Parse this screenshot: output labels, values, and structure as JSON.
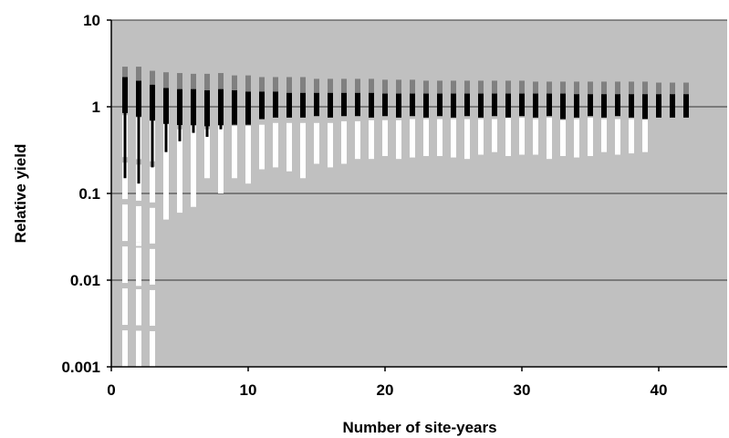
{
  "chart_data": {
    "type": "box-range",
    "title": "",
    "xlabel": "Number of site-years",
    "ylabel": "Relative yield",
    "xlim": [
      0,
      45
    ],
    "ylim": [
      0.001,
      10
    ],
    "yscale": "log",
    "x_ticks": [
      0,
      10,
      20,
      30,
      40
    ],
    "y_ticks": [
      0.001,
      0.01,
      0.1,
      1,
      10
    ],
    "x_tick_labels": [
      "0",
      "10",
      "20",
      "30",
      "40"
    ],
    "y_tick_labels": [
      "0.001",
      "0.01",
      "0.1",
      "1",
      "10"
    ],
    "grid": "horizontal",
    "colors": {
      "plot_background": "#c0c0c0",
      "white_range": "#ffffff",
      "black_range": "#000000",
      "gray_range": "#808080"
    },
    "x": [
      1,
      2,
      3,
      4,
      5,
      6,
      7,
      8,
      9,
      10,
      11,
      12,
      13,
      14,
      15,
      16,
      17,
      18,
      19,
      20,
      21,
      22,
      23,
      24,
      25,
      26,
      27,
      28,
      29,
      30,
      31,
      32,
      33,
      34,
      35,
      36,
      37,
      38,
      39,
      40,
      41,
      42
    ],
    "white_lower": [
      0.001,
      0.001,
      0.001,
      0.05,
      0.06,
      0.07,
      0.15,
      0.1,
      0.15,
      0.13,
      0.19,
      0.2,
      0.18,
      0.15,
      0.22,
      0.2,
      0.22,
      0.25,
      0.25,
      0.27,
      0.25,
      0.26,
      0.27,
      0.27,
      0.26,
      0.25,
      0.28,
      0.3,
      0.27,
      0.28,
      0.28,
      0.25,
      0.27,
      0.26,
      0.27,
      0.3,
      0.28,
      0.29,
      0.3,
      null,
      null,
      null
    ],
    "white_upper": [
      0.8,
      0.75,
      0.7,
      0.75,
      0.55,
      0.6,
      0.55,
      0.6,
      0.6,
      0.6,
      0.62,
      0.65,
      0.65,
      0.65,
      0.65,
      0.65,
      0.68,
      0.68,
      0.7,
      0.7,
      0.7,
      0.72,
      0.72,
      0.72,
      0.72,
      0.72,
      0.72,
      0.72,
      0.75,
      0.75,
      0.72,
      0.75,
      0.7,
      0.72,
      0.75,
      0.72,
      0.72,
      0.72,
      0.72,
      null,
      null,
      null
    ],
    "white_outliers": [
      [
        1,
        0.035
      ],
      [
        1,
        0.018
      ],
      [
        2,
        0.045
      ],
      [
        2,
        0.026
      ],
      [
        2,
        0.018
      ],
      [
        2,
        0.009
      ],
      [
        3,
        0.06
      ],
      [
        3,
        0.028
      ],
      [
        3,
        0.012
      ],
      [
        1,
        0.1
      ],
      [
        1,
        0.15
      ]
    ],
    "black_lower": [
      0.15,
      0.13,
      0.2,
      0.3,
      0.4,
      0.5,
      0.45,
      0.55,
      0.62,
      0.62,
      0.72,
      0.75,
      0.75,
      0.75,
      0.78,
      0.75,
      0.78,
      0.78,
      0.75,
      0.78,
      0.75,
      0.78,
      0.75,
      0.78,
      0.75,
      0.78,
      0.75,
      0.78,
      0.75,
      0.78,
      0.75,
      0.78,
      0.72,
      0.75,
      0.78,
      0.75,
      0.78,
      0.75,
      0.72,
      0.75,
      0.75,
      0.75
    ],
    "black_upper": [
      2.2,
      2.0,
      1.8,
      1.65,
      1.6,
      1.6,
      1.55,
      1.6,
      1.55,
      1.5,
      1.5,
      1.5,
      1.45,
      1.45,
      1.45,
      1.45,
      1.45,
      1.45,
      1.45,
      1.42,
      1.42,
      1.42,
      1.42,
      1.42,
      1.42,
      1.42,
      1.42,
      1.42,
      1.42,
      1.42,
      1.42,
      1.42,
      1.42,
      1.4,
      1.4,
      1.4,
      1.4,
      1.4,
      1.4,
      1.4,
      1.4,
      1.4
    ],
    "gray_lower": [
      2.2,
      2.0,
      1.8,
      1.65,
      1.6,
      1.6,
      1.55,
      1.6,
      1.55,
      1.5,
      1.5,
      1.5,
      1.45,
      1.45,
      1.45,
      1.45,
      1.45,
      1.45,
      1.45,
      1.42,
      1.42,
      1.42,
      1.42,
      1.42,
      1.42,
      1.42,
      1.42,
      1.42,
      1.42,
      1.42,
      1.42,
      1.42,
      1.42,
      1.4,
      1.4,
      1.4,
      1.4,
      1.4,
      1.4,
      1.4,
      1.4,
      1.4
    ],
    "gray_upper": [
      2.9,
      2.9,
      2.6,
      2.5,
      2.45,
      2.4,
      2.4,
      2.45,
      2.3,
      2.3,
      2.2,
      2.2,
      2.2,
      2.2,
      2.1,
      2.1,
      2.1,
      2.1,
      2.1,
      2.05,
      2.05,
      2.05,
      2.0,
      2.0,
      2.0,
      2.0,
      2.0,
      2.0,
      2.0,
      2.0,
      1.95,
      1.95,
      1.95,
      1.95,
      1.95,
      1.95,
      1.95,
      1.95,
      1.95,
      1.9,
      1.9,
      1.9
    ]
  }
}
